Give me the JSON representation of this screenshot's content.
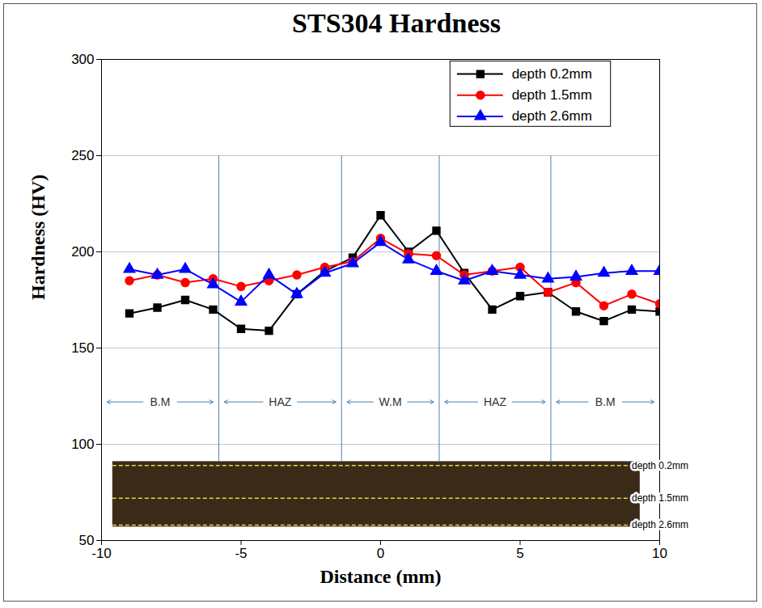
{
  "chart_data": {
    "type": "line",
    "title": "STS304 Hardness",
    "x_label": "Distance (mm)",
    "y_label": "Hardness (HV)",
    "x": [
      -9,
      -8,
      -7,
      -6,
      -5,
      -4,
      -3,
      -2,
      -1,
      0,
      1,
      2,
      3,
      4,
      5,
      6,
      7,
      8,
      9,
      10
    ],
    "series": [
      {
        "name": "depth 0.2mm",
        "color": "#000000",
        "marker": "square",
        "values": [
          168,
          171,
          175,
          170,
          160,
          159,
          178,
          190,
          197,
          219,
          200,
          211,
          189,
          170,
          177,
          179,
          169,
          164,
          170,
          169
        ]
      },
      {
        "name": "depth 1.5mm",
        "color": "#ff0000",
        "marker": "circle",
        "values": [
          185,
          188,
          184,
          186,
          182,
          185,
          188,
          192,
          195,
          207,
          199,
          198,
          188,
          190,
          192,
          179,
          184,
          172,
          178,
          173
        ]
      },
      {
        "name": "depth 2.6mm",
        "color": "#0000ff",
        "marker": "triangle",
        "values": [
          191,
          188,
          191,
          183,
          174,
          188,
          178,
          189,
          194,
          205,
          196,
          190,
          185,
          190,
          188,
          186,
          187,
          189,
          190,
          190
        ]
      }
    ],
    "xlim": [
      -10,
      10
    ],
    "xticks": [
      -10,
      -5,
      0,
      5,
      10
    ],
    "ylim": [
      50,
      300
    ],
    "yticks": [
      50,
      100,
      150,
      200,
      250,
      300
    ],
    "grid": true,
    "legend": "top-right",
    "region_lines": {
      "x": [
        -5.8,
        -1.4,
        2.1,
        6.1
      ],
      "from": 91,
      "to": 250
    },
    "regions": [
      {
        "label": "B.M",
        "from": -10,
        "to": -5.8
      },
      {
        "label": "HAZ",
        "from": -5.8,
        "to": -1.4
      },
      {
        "label": "W.M",
        "from": -1.4,
        "to": 2.1
      },
      {
        "label": "HAZ",
        "from": 2.1,
        "to": 6.1
      },
      {
        "label": "B.M",
        "from": 6.1,
        "to": 10
      }
    ],
    "regions_y": 122,
    "specimen": {
      "xlim": [
        -9.6,
        9.3
      ],
      "ylim": [
        57,
        91
      ],
      "color": "#3b2a17",
      "lines": [
        {
          "label": "depth 0.2mm",
          "y": 89
        },
        {
          "label": "depth 1.5mm",
          "y": 72
        },
        {
          "label": "depth 2.6mm",
          "y": 58
        }
      ]
    }
  }
}
